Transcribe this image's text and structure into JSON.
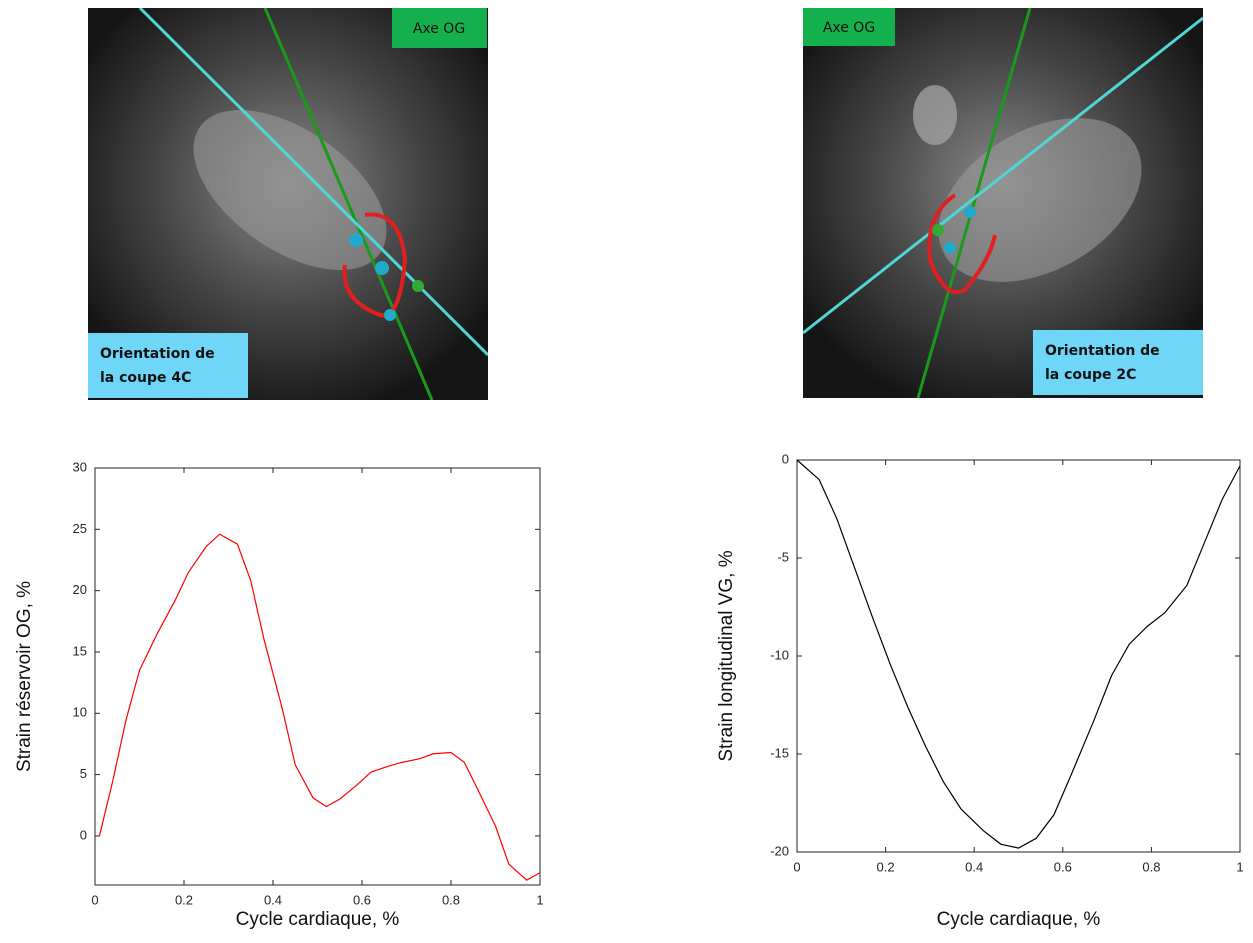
{
  "images": [
    {
      "tag": "Axe OG",
      "label": [
        "Orientation de",
        "la coupe 4C"
      ]
    },
    {
      "tag": "Axe OG",
      "label": [
        "Orientation de",
        "la coupe 2C"
      ]
    }
  ],
  "chart_data": [
    {
      "type": "line",
      "x_label": "Cycle cardiaque, %",
      "y_label": "Strain réservoir OG, %",
      "x": [
        0.01,
        0.04,
        0.07,
        0.1,
        0.14,
        0.18,
        0.21,
        0.25,
        0.28,
        0.32,
        0.35,
        0.38,
        0.42,
        0.45,
        0.49,
        0.52,
        0.55,
        0.59,
        0.62,
        0.66,
        0.69,
        0.73,
        0.76,
        0.8,
        0.83,
        0.86,
        0.9,
        0.93,
        0.97,
        1
      ],
      "series": [
        {
          "color": "#ff0000",
          "values": [
            0,
            4.5,
            9.5,
            13.5,
            16.5,
            19.2,
            21.5,
            23.6,
            24.6,
            23.8,
            20.8,
            16,
            10.5,
            5.8,
            3.1,
            2.4,
            3,
            4.2,
            5.2,
            5.7,
            6,
            6.3,
            6.7,
            6.8,
            6,
            3.8,
            0.8,
            -2.3,
            -3.6,
            -3
          ]
        }
      ],
      "xlim": [
        0,
        1
      ],
      "xticks": [
        0,
        0.2,
        0.4,
        0.6,
        0.8,
        1
      ],
      "ylim": [
        -4,
        30
      ],
      "yticks": [
        0,
        5,
        10,
        15,
        20,
        25,
        30
      ]
    },
    {
      "type": "line",
      "x_label": "Cycle cardiaque, %",
      "y_label": "Strain longitudinal VG, %",
      "x": [
        0,
        0.05,
        0.09,
        0.13,
        0.17,
        0.21,
        0.25,
        0.29,
        0.33,
        0.37,
        0.42,
        0.46,
        0.5,
        0.54,
        0.58,
        0.62,
        0.67,
        0.71,
        0.75,
        0.79,
        0.83,
        0.88,
        0.92,
        0.96,
        1
      ],
      "series": [
        {
          "color": "#000000",
          "values": [
            0,
            -1,
            -3,
            -5.5,
            -8,
            -10.4,
            -12.6,
            -14.6,
            -16.4,
            -17.8,
            -18.9,
            -19.6,
            -19.8,
            -19.3,
            -18.1,
            -16,
            -13.3,
            -11,
            -9.4,
            -8.5,
            -7.8,
            -6.4,
            -4.2,
            -2,
            -0.3
          ]
        }
      ],
      "xlim": [
        0,
        1
      ],
      "xticks": [
        0,
        0.2,
        0.4,
        0.6,
        0.8,
        1
      ],
      "ylim": [
        -20,
        0
      ],
      "yticks": [
        0,
        -5,
        -10,
        -15,
        -20
      ]
    }
  ]
}
